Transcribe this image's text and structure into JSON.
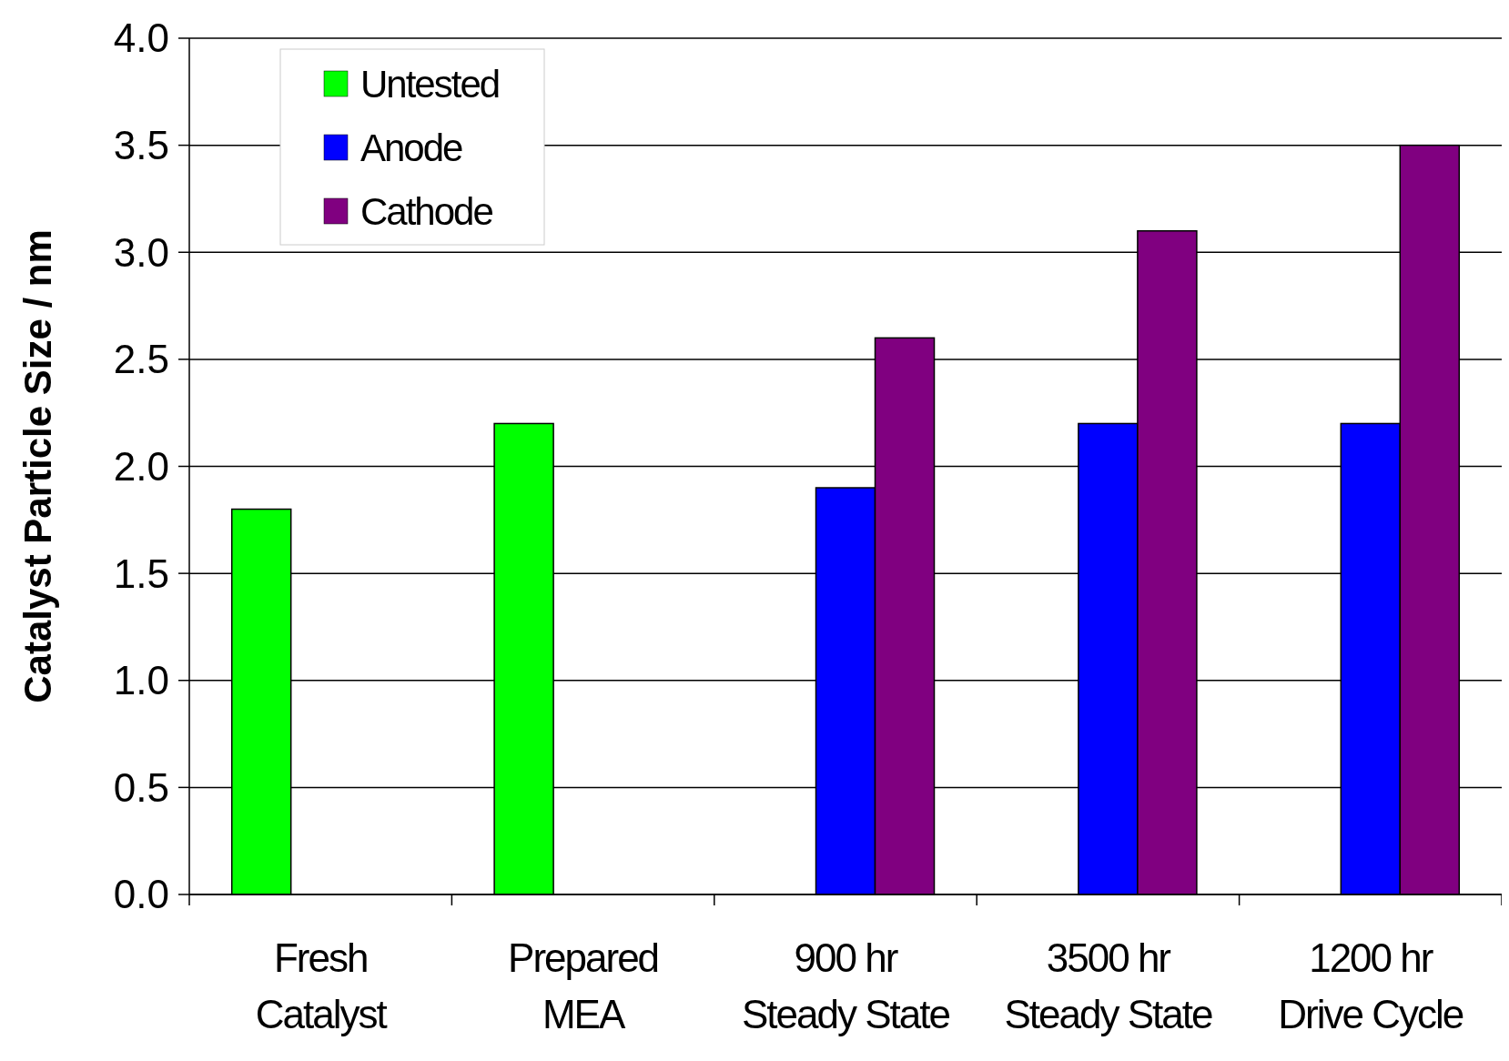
{
  "chart_data": {
    "type": "bar",
    "ylabel": "Catalyst Particle Size / nm",
    "categories": [
      "Fresh\nCatalyst",
      "Prepared\nMEA",
      "900 hr\nSteady State",
      "3500 hr\nSteady State",
      "1200 hr\nDrive Cycle"
    ],
    "series": [
      {
        "name": "Untested",
        "color": "#00ff00",
        "values": [
          1.8,
          2.2,
          null,
          null,
          null
        ]
      },
      {
        "name": "Anode",
        "color": "#0000ff",
        "values": [
          null,
          null,
          1.9,
          2.2,
          2.2
        ]
      },
      {
        "name": "Cathode",
        "color": "#800080",
        "values": [
          null,
          null,
          2.6,
          3.1,
          3.5
        ]
      }
    ],
    "ylim": [
      0,
      4
    ],
    "yticks": [
      {
        "value": 0,
        "label": "0.0"
      },
      {
        "value": 0.5,
        "label": "0.5"
      },
      {
        "value": 1,
        "label": "1.0"
      },
      {
        "value": 1.5,
        "label": "1.5"
      },
      {
        "value": 2,
        "label": "2.0"
      },
      {
        "value": 2.5,
        "label": "2.5"
      },
      {
        "value": 3,
        "label": "3.0"
      },
      {
        "value": 3.5,
        "label": "3.5"
      },
      {
        "value": 4,
        "label": "4.0"
      }
    ],
    "grid": "y",
    "legend": "top left"
  }
}
